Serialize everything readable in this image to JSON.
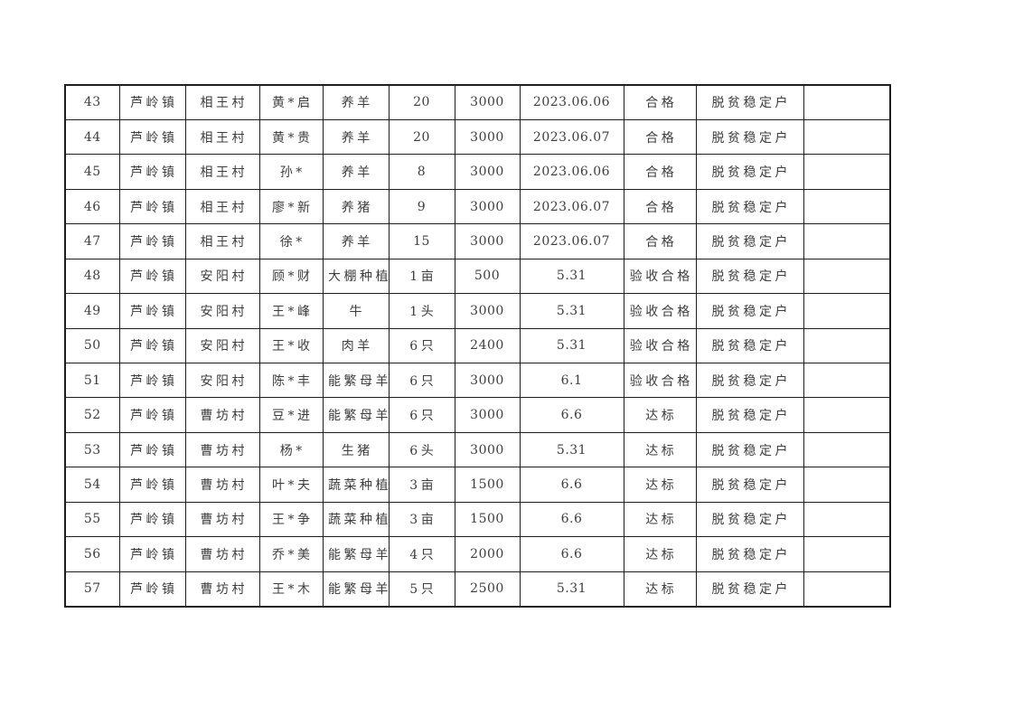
{
  "page": {
    "background_color": "#ffffff"
  },
  "colors": {
    "table_border": "#1f1f1f",
    "cell_text": "#3d3d3d"
  },
  "table": {
    "rows": [
      [
        "43",
        "芦岭镇",
        "相王村",
        "黄*启",
        "养羊",
        "20",
        "3000",
        "2023.06.06",
        "合格",
        "脱贫稳定户",
        ""
      ],
      [
        "44",
        "芦岭镇",
        "相王村",
        "黄*贵",
        "养羊",
        "20",
        "3000",
        "2023.06.07",
        "合格",
        "脱贫稳定户",
        ""
      ],
      [
        "45",
        "芦岭镇",
        "相王村",
        "孙*",
        "养羊",
        "8",
        "3000",
        "2023.06.06",
        "合格",
        "脱贫稳定户",
        ""
      ],
      [
        "46",
        "芦岭镇",
        "相王村",
        "廖*新",
        "养猪",
        "9",
        "3000",
        "2023.06.07",
        "合格",
        "脱贫稳定户",
        ""
      ],
      [
        "47",
        "芦岭镇",
        "相王村",
        "徐*",
        "养羊",
        "15",
        "3000",
        "2023.06.07",
        "合格",
        "脱贫稳定户",
        ""
      ],
      [
        "48",
        "芦岭镇",
        "安阳村",
        "顾*财",
        "大棚种植",
        "1亩",
        "500",
        "5.31",
        "验收合格",
        "脱贫稳定户",
        ""
      ],
      [
        "49",
        "芦岭镇",
        "安阳村",
        "王*峰",
        "牛",
        "1头",
        "3000",
        "5.31",
        "验收合格",
        "脱贫稳定户",
        ""
      ],
      [
        "50",
        "芦岭镇",
        "安阳村",
        "王*收",
        "肉羊",
        "6只",
        "2400",
        "5.31",
        "验收合格",
        "脱贫稳定户",
        ""
      ],
      [
        "51",
        "芦岭镇",
        "安阳村",
        "陈*丰",
        "能繁母羊",
        "6只",
        "3000",
        "6.1",
        "验收合格",
        "脱贫稳定户",
        ""
      ],
      [
        "52",
        "芦岭镇",
        "曹坊村",
        "豆*进",
        "能繁母羊",
        "6只",
        "3000",
        "6.6",
        "达标",
        "脱贫稳定户",
        ""
      ],
      [
        "53",
        "芦岭镇",
        "曹坊村",
        "杨*",
        "生猪",
        "6头",
        "3000",
        "5.31",
        "达标",
        "脱贫稳定户",
        ""
      ],
      [
        "54",
        "芦岭镇",
        "曹坊村",
        "叶*夫",
        "蔬菜种植",
        "3亩",
        "1500",
        "6.6",
        "达标",
        "脱贫稳定户",
        ""
      ],
      [
        "55",
        "芦岭镇",
        "曹坊村",
        "王*争",
        "蔬菜种植",
        "3亩",
        "1500",
        "6.6",
        "达标",
        "脱贫稳定户",
        ""
      ],
      [
        "56",
        "芦岭镇",
        "曹坊村",
        "乔*美",
        "能繁母羊",
        "4只",
        "2000",
        "6.6",
        "达标",
        "脱贫稳定户",
        ""
      ],
      [
        "57",
        "芦岭镇",
        "曹坊村",
        "王*木",
        "能繁母羊",
        "5只",
        "2500",
        "5.31",
        "达标",
        "脱贫稳定户",
        ""
      ]
    ]
  }
}
